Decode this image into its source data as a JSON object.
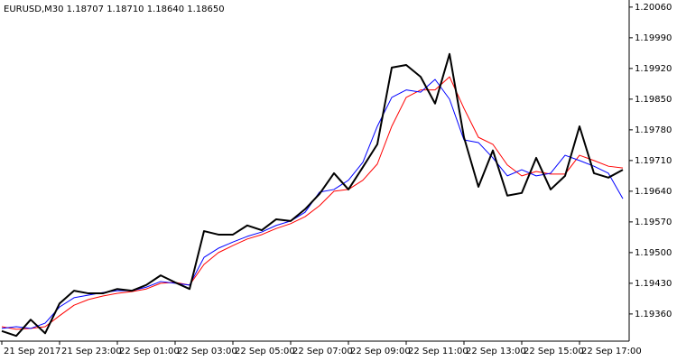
{
  "chart_data": {
    "type": "line",
    "title": "EURUSD,M30  1.18707 1.18710 1.18640 1.18650",
    "categories": [
      "21 Sep 2017",
      null,
      null,
      null,
      "21 Sep 23:00",
      null,
      null,
      null,
      "22 Sep 01:00",
      null,
      null,
      null,
      "22 Sep 03:00",
      null,
      null,
      null,
      "22 Sep 05:00",
      null,
      null,
      null,
      "22 Sep 07:00",
      null,
      null,
      null,
      "22 Sep 09:00",
      null,
      null,
      null,
      "22 Sep 11:00",
      null,
      null,
      null,
      "22 Sep 13:00",
      null,
      null,
      null,
      "22 Sep 15:00",
      null,
      null,
      null,
      "22 Sep 17:00",
      null,
      null,
      null
    ],
    "series": [
      {
        "color": "#ff0000",
        "width": 1,
        "values": [
          1.19331,
          1.19325,
          1.19327,
          1.19331,
          1.19356,
          1.1938,
          1.19393,
          1.19401,
          1.19407,
          1.19411,
          1.19417,
          1.1943,
          1.19432,
          1.19426,
          1.19473,
          1.195,
          1.19516,
          1.19531,
          1.19541,
          1.19555,
          1.19566,
          1.19582,
          1.19607,
          1.1964,
          1.19644,
          1.19665,
          1.19702,
          1.19788,
          1.19854,
          1.19871,
          1.19871,
          1.19901,
          1.19829,
          1.19763,
          1.19747,
          1.197,
          1.19675,
          1.19685,
          1.19679,
          1.19679,
          1.19722,
          1.1971,
          1.19697,
          1.19693
        ]
      },
      {
        "color": "#0000ff",
        "width": 1,
        "values": [
          1.19327,
          1.19331,
          1.19327,
          1.19339,
          1.19376,
          1.19397,
          1.19403,
          1.19409,
          1.19413,
          1.19413,
          1.19421,
          1.19434,
          1.1943,
          1.19426,
          1.19489,
          1.1951,
          1.19524,
          1.19537,
          1.19547,
          1.19562,
          1.19572,
          1.19592,
          1.19638,
          1.19644,
          1.19665,
          1.19706,
          1.19788,
          1.19854,
          1.19871,
          1.19866,
          1.19895,
          1.1985,
          1.19757,
          1.19751,
          1.19716,
          1.19675,
          1.19689,
          1.19675,
          1.19681,
          1.19722,
          1.1971,
          1.19697,
          1.19681,
          1.19623
        ]
      },
      {
        "color": "#000000",
        "width": 2,
        "values": [
          1.19321,
          1.1931,
          1.19347,
          1.19316,
          1.19384,
          1.19413,
          1.19407,
          1.19407,
          1.19417,
          1.19413,
          1.19426,
          1.19448,
          1.19432,
          1.19417,
          1.19549,
          1.19541,
          1.19541,
          1.19562,
          1.19551,
          1.19576,
          1.19572,
          1.19599,
          1.19634,
          1.19681,
          1.19644,
          1.19695,
          1.19747,
          1.19922,
          1.19928,
          1.19901,
          1.1984,
          1.19953,
          1.19763,
          1.1965,
          1.19733,
          1.1963,
          1.19636,
          1.19716,
          1.19644,
          1.19675,
          1.19788,
          1.19681,
          1.19671,
          1.19689
        ]
      }
    ],
    "ylim": [
      1.19298,
      1.2007
    ],
    "yticks": [
      {
        "value": 1.2006,
        "label": "1.20060"
      },
      {
        "value": 1.1999,
        "label": "1.19990"
      },
      {
        "value": 1.1992,
        "label": "1.19920"
      },
      {
        "value": 1.1985,
        "label": "1.19850"
      },
      {
        "value": 1.1978,
        "label": "1.19780"
      },
      {
        "value": 1.1971,
        "label": "1.19710"
      },
      {
        "value": 1.1964,
        "label": "1.19640"
      },
      {
        "value": 1.1957,
        "label": "1.19570"
      },
      {
        "value": 1.195,
        "label": "1.19500"
      },
      {
        "value": 1.1943,
        "label": "1.19430"
      },
      {
        "value": 1.1936,
        "label": "1.19360"
      }
    ]
  }
}
